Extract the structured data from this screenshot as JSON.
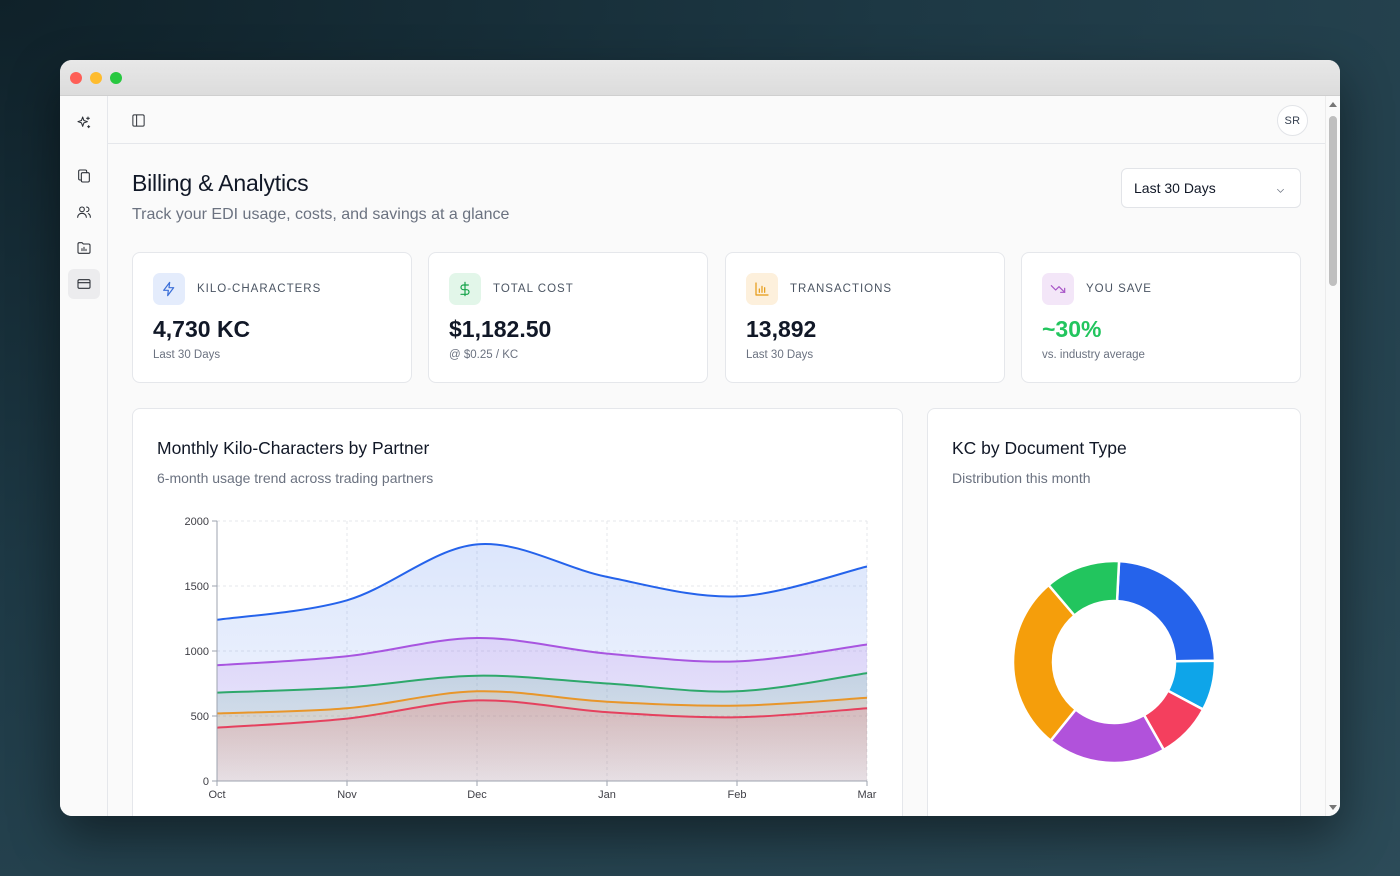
{
  "window": {
    "controls": [
      "close",
      "minimize",
      "zoom"
    ]
  },
  "sidebar": {
    "logo_icon": "sparkles-icon",
    "items": [
      {
        "name": "documents",
        "icon": "copy-icon",
        "active": false
      },
      {
        "name": "partners",
        "icon": "users-icon",
        "active": false
      },
      {
        "name": "reports",
        "icon": "folder-chart-icon",
        "active": false
      },
      {
        "name": "billing",
        "icon": "credit-card-icon",
        "active": true
      }
    ]
  },
  "topbar": {
    "toggle_icon": "panel-left-icon",
    "avatar_initials": "SR"
  },
  "header": {
    "title": "Billing & Analytics",
    "subtitle": "Track your EDI usage, costs, and savings at a glance",
    "range_select": {
      "value": "Last 30 Days"
    }
  },
  "stats": [
    {
      "label": "KILO-CHARACTERS",
      "value": "4,730 KC",
      "note": "Last 30 Days",
      "icon": "lightning-icon",
      "icon_color": "#3b6fd8",
      "icon_bg": "#e4ecfc",
      "value_color": "#111827"
    },
    {
      "label": "TOTAL COST",
      "value": "$1,182.50",
      "note": "@ $0.25 / KC",
      "icon": "dollar-icon",
      "icon_color": "#16a34a",
      "icon_bg": "#e2f6e9",
      "value_color": "#111827"
    },
    {
      "label": "TRANSACTIONS",
      "value": "13,892",
      "note": "Last 30 Days",
      "icon": "bar-chart-icon",
      "icon_color": "#e69a13",
      "icon_bg": "#fdf0dc",
      "value_color": "#111827"
    },
    {
      "label": "YOU SAVE",
      "value": "~30%",
      "note": "vs. industry average",
      "icon": "trending-down-icon",
      "icon_color": "#a855c7",
      "icon_bg": "#f3e6f8",
      "value_color": "#22c55e"
    }
  ],
  "usage_panel": {
    "title": "Monthly Kilo-Characters by Partner",
    "subtitle": "6-month usage trend across trading partners"
  },
  "doc_panel": {
    "title": "KC by Document Type",
    "subtitle": "Distribution this month"
  },
  "fab": {
    "icon": "phone-icon"
  },
  "chart_data": [
    {
      "type": "area",
      "categories": [
        "Oct",
        "Nov",
        "Dec",
        "Jan",
        "Feb",
        "Mar"
      ],
      "ylim": [
        0,
        2000
      ],
      "yticks": [
        0,
        500,
        1000,
        1500,
        2000
      ],
      "grid": true,
      "series": [
        {
          "color": "#2563eb",
          "values": [
            1240,
            1390,
            1820,
            1570,
            1420,
            1650
          ]
        },
        {
          "color": "#a855e0",
          "values": [
            890,
            960,
            1100,
            980,
            920,
            1050
          ]
        },
        {
          "color": "#2ea86b",
          "values": [
            680,
            720,
            810,
            750,
            690,
            830
          ]
        },
        {
          "color": "#e8962a",
          "values": [
            520,
            560,
            690,
            610,
            580,
            640
          ]
        },
        {
          "color": "#e5415e",
          "values": [
            410,
            480,
            620,
            530,
            490,
            560
          ]
        }
      ]
    },
    {
      "type": "pie",
      "donut": true,
      "slices": [
        {
          "value": 24,
          "color": "#2563eb"
        },
        {
          "value": 8,
          "color": "#0ea5e9"
        },
        {
          "value": 9,
          "color": "#f43f5e"
        },
        {
          "value": 19,
          "color": "#b152db"
        },
        {
          "value": 28,
          "color": "#f59e0b"
        },
        {
          "value": 12,
          "color": "#22c55e"
        }
      ]
    }
  ]
}
